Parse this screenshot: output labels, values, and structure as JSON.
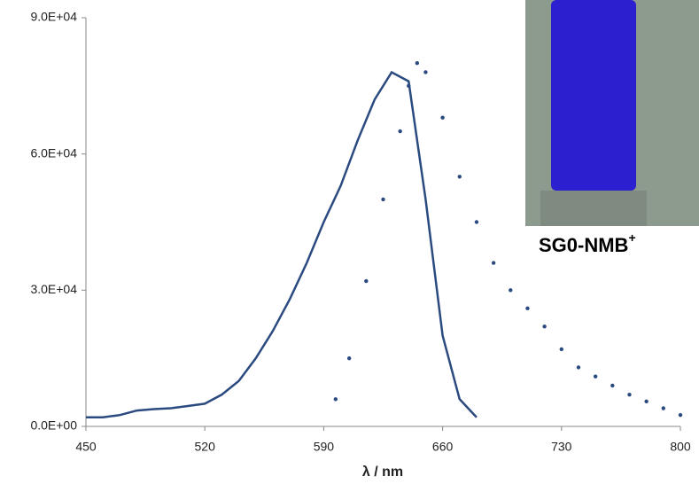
{
  "chart_data": {
    "type": "line",
    "xlabel": "λ / nm",
    "annotation": {
      "text": "SG0-NMB",
      "superscript": "+"
    },
    "xlim": [
      450,
      800
    ],
    "xticks": [
      450,
      520,
      590,
      660,
      730,
      800
    ],
    "ylim": [
      0,
      90000
    ],
    "yticks": [
      {
        "value": 0,
        "label": "0.0E+00"
      },
      {
        "value": 30000,
        "label": "3.0E+04"
      },
      {
        "value": 60000,
        "label": "6.0E+04"
      },
      {
        "value": 90000,
        "label": "9.0E+04"
      }
    ],
    "series": [
      {
        "style": "line",
        "color": "#2b4a80",
        "x": [
          450,
          460,
          470,
          480,
          490,
          500,
          510,
          520,
          530,
          540,
          550,
          560,
          570,
          580,
          590,
          600,
          610,
          620,
          630,
          640,
          650,
          660,
          670,
          680
        ],
        "values": [
          2000,
          2000,
          2500,
          3500,
          3800,
          4000,
          4500,
          5000,
          7000,
          10000,
          15000,
          21000,
          28000,
          36000,
          45000,
          53000,
          63000,
          72000,
          78000,
          76000,
          50000,
          20000,
          6000,
          2000
        ]
      },
      {
        "style": "dots",
        "color": "#2b4a80",
        "x": [
          597,
          605,
          615,
          625,
          635,
          640,
          645,
          650,
          660,
          670,
          680,
          690,
          700,
          710,
          720,
          730,
          740,
          750,
          760,
          770,
          780,
          790,
          800
        ],
        "values": [
          6000,
          15000,
          32000,
          50000,
          65000,
          75000,
          80000,
          78000,
          68000,
          55000,
          45000,
          36000,
          30000,
          26000,
          22000,
          17000,
          13000,
          11000,
          9000,
          7000,
          5500,
          4000,
          2500
        ]
      }
    ]
  }
}
